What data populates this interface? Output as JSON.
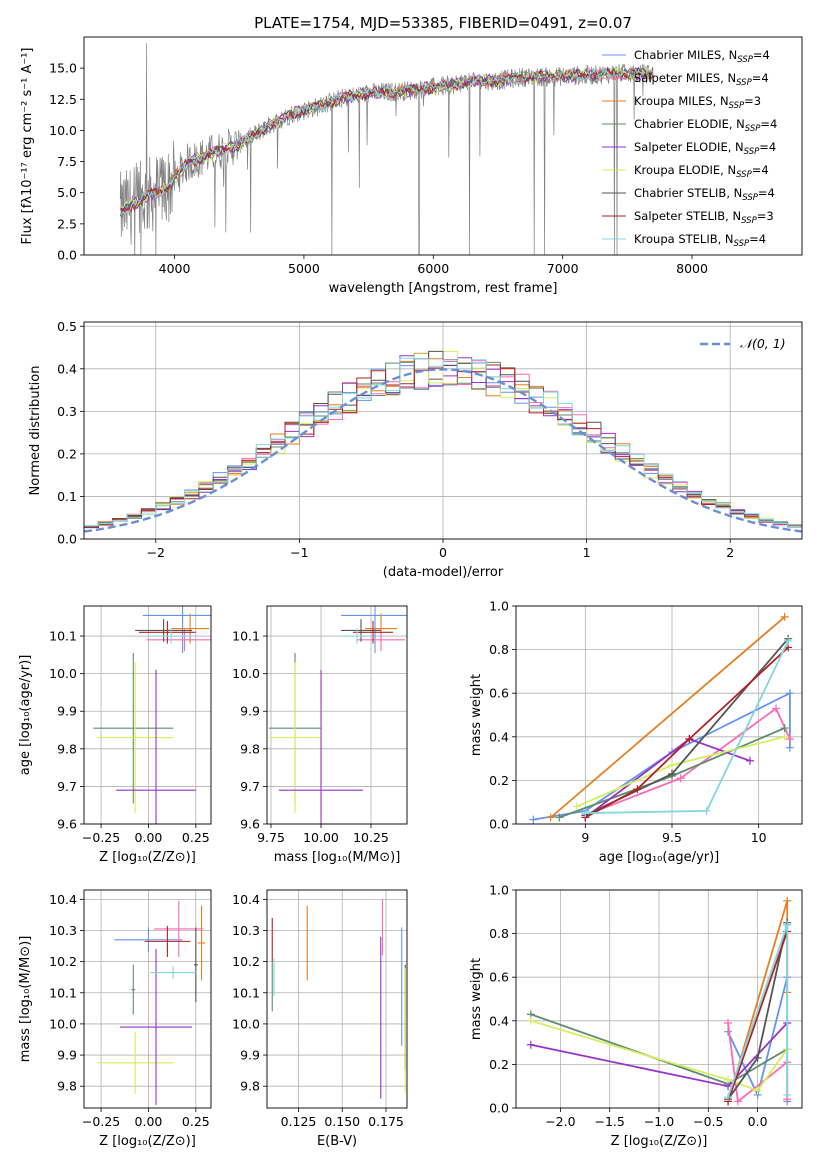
{
  "chart_data": [
    {
      "id": "spectrum",
      "type": "line",
      "title": "PLATE=1754, MJD=53385, FIBERID=0491, z=0.07",
      "xlabel": "wavelength [Angstrom, rest frame]",
      "ylabel": "Flux [fλ10⁻¹⁷ erg cm⁻² s⁻¹ A⁻¹]",
      "xlim": [
        3300,
        8850
      ],
      "ylim": [
        0,
        17.5
      ],
      "xticks": [
        4000,
        5000,
        6000,
        7000,
        8000
      ],
      "yticks": [
        0.0,
        2.5,
        5.0,
        7.5,
        10.0,
        12.5,
        15.0
      ],
      "grid": false,
      "legend_position": "right",
      "continuum_nodes": {
        "x": [
          3580,
          3700,
          3850,
          3950,
          4100,
          4300,
          4500,
          4700,
          4900,
          5100,
          5300,
          5500,
          5700,
          5900,
          6100,
          6300,
          6500,
          6700,
          6900,
          7100,
          7300,
          7500,
          7700
        ],
        "y": [
          3.5,
          4.2,
          5.0,
          5.5,
          7.4,
          8.2,
          8.9,
          10.2,
          11.3,
          11.9,
          12.6,
          13.0,
          13.1,
          13.3,
          13.6,
          14.0,
          14.0,
          14.3,
          14.3,
          14.4,
          14.5,
          14.6,
          14.5
        ]
      },
      "legend": [
        {
          "label": "Chabrier MILES, N",
          "sub": "SSP",
          "value": "=4",
          "color": "#6495ED"
        },
        {
          "label": "Salpeter MILES, N",
          "sub": "SSP",
          "value": "=4",
          "color": "#FF69B4"
        },
        {
          "label": "Kroupa MILES, N",
          "sub": "SSP",
          "value": "=3",
          "color": "#E67E22"
        },
        {
          "label": "Chabrier ELODIE, N",
          "sub": "SSP",
          "value": "=4",
          "color": "#5F8C6E"
        },
        {
          "label": "Salpeter ELODIE, N",
          "sub": "SSP",
          "value": "=4",
          "color": "#9932CC"
        },
        {
          "label": "Kroupa ELODIE, N",
          "sub": "SSP",
          "value": "=4",
          "color": "#D4EE5E"
        },
        {
          "label": "Chabrier STELIB, N",
          "sub": "SSP",
          "value": "=4",
          "color": "#555555"
        },
        {
          "label": "Salpeter STELIB, N",
          "sub": "SSP",
          "value": "=3",
          "color": "#B22222"
        },
        {
          "label": "Kroupa STELIB, N",
          "sub": "SSP",
          "value": "=4",
          "color": "#7FD8DF"
        }
      ]
    },
    {
      "id": "residuals",
      "type": "line",
      "xlabel": "(data-model)/error",
      "ylabel": "Normed distribution",
      "xlim": [
        -2.5,
        2.5
      ],
      "ylim": [
        0,
        0.51
      ],
      "xticks": [
        -2,
        -1,
        0,
        1,
        2
      ],
      "xtick_labels": [
        "−2",
        "−1",
        "0",
        "1",
        "2"
      ],
      "yticks": [
        0.0,
        0.1,
        0.2,
        0.3,
        0.4,
        0.5
      ],
      "grid": true,
      "legend_position": "top-right",
      "legend_label": "𝒩(0, 1)",
      "bin_width": 0.1
    },
    {
      "id": "age_vs_z",
      "type": "scatter",
      "xlabel": "Z [log₁₀(Z/Z⊙)]",
      "ylabel": "age  [log₁₀(age/yr)]",
      "xlim": [
        -0.34,
        0.33
      ],
      "ylim": [
        9.6,
        10.18
      ],
      "xticks": [
        -0.25,
        0.0,
        0.25
      ],
      "xtick_labels": [
        "−0.25",
        "0.00",
        "0.25"
      ],
      "yticks": [
        9.6,
        9.7,
        9.8,
        9.9,
        10.0,
        10.1
      ],
      "grid": true,
      "points": [
        {
          "x": 0.18,
          "y": 10.155,
          "xerr": 0.21,
          "yerr": 0.1,
          "color": "#6495ED"
        },
        {
          "x": 0.22,
          "y": 10.12,
          "xerr": 0.1,
          "yerr": 0.04,
          "color": "#E67E22"
        },
        {
          "x": 0.19,
          "y": 10.09,
          "xerr": 0.2,
          "yerr": 0.03,
          "color": "#FF69B4"
        },
        {
          "x": 0.08,
          "y": 10.115,
          "xerr": 0.15,
          "yerr": 0.03,
          "color": "#555555"
        },
        {
          "x": 0.1,
          "y": 10.11,
          "xerr": 0.15,
          "yerr": 0.03,
          "color": "#B22222"
        },
        {
          "x": -0.08,
          "y": 9.855,
          "xerr": 0.21,
          "yerr": 0.2,
          "color": "#5F8C6E"
        },
        {
          "x": -0.07,
          "y": 9.83,
          "xerr": 0.2,
          "yerr": 0.2,
          "color": "#D4EE5E"
        },
        {
          "x": 0.04,
          "y": 9.69,
          "xerr": 0.21,
          "yerr": 0.32,
          "color": "#9932CC"
        },
        {
          "x": 0.12,
          "y": 10.1,
          "xerr": 0.12,
          "yerr": 0.02,
          "color": "#7FD8DF"
        }
      ]
    },
    {
      "id": "age_vs_mass",
      "type": "scatter",
      "xlabel": "mass [log₁₀(M/M⊙)]",
      "xlim": [
        9.73,
        10.43
      ],
      "ylim": [
        9.6,
        10.18
      ],
      "xticks": [
        9.75,
        10.0,
        10.25
      ],
      "xtick_labels": [
        "9.75",
        "10.00",
        "10.25"
      ],
      "yticks": [
        9.6,
        9.7,
        9.8,
        9.9,
        10.0,
        10.1
      ],
      "grid": true,
      "points": [
        {
          "x": 10.27,
          "y": 10.155,
          "xerr": 0.17,
          "yerr": 0.1,
          "color": "#6495ED"
        },
        {
          "x": 10.3,
          "y": 10.12,
          "xerr": 0.08,
          "yerr": 0.04,
          "color": "#E67E22"
        },
        {
          "x": 10.3,
          "y": 10.09,
          "xerr": 0.12,
          "yerr": 0.03,
          "color": "#FF69B4"
        },
        {
          "x": 10.2,
          "y": 10.115,
          "xerr": 0.1,
          "yerr": 0.03,
          "color": "#555555"
        },
        {
          "x": 10.26,
          "y": 10.11,
          "xerr": 0.1,
          "yerr": 0.03,
          "color": "#B22222"
        },
        {
          "x": 9.87,
          "y": 9.855,
          "xerr": 0.13,
          "yerr": 0.2,
          "color": "#5F8C6E"
        },
        {
          "x": 9.87,
          "y": 9.83,
          "xerr": 0.13,
          "yerr": 0.2,
          "color": "#D4EE5E"
        },
        {
          "x": 10.0,
          "y": 9.69,
          "xerr": 0.21,
          "yerr": 0.32,
          "color": "#9932CC"
        },
        {
          "x": 10.18,
          "y": 10.1,
          "xerr": 0.08,
          "yerr": 0.02,
          "color": "#7FD8DF"
        }
      ]
    },
    {
      "id": "weight_vs_age",
      "type": "line",
      "xlabel": "age  [log₁₀(age/yr)]",
      "ylabel": "mass weight",
      "xlim": [
        8.6,
        10.25
      ],
      "ylim": [
        0,
        1.0
      ],
      "xticks": [
        9.0,
        9.5,
        10.0
      ],
      "yticks": [
        0.0,
        0.2,
        0.4,
        0.6,
        0.8,
        1.0
      ],
      "grid": true,
      "series": [
        {
          "color": "#6495ED",
          "x": [
            8.7,
            9.0,
            9.5,
            10.18,
            10.18
          ],
          "y": [
            0.02,
            0.06,
            0.33,
            0.6,
            0.35
          ]
        },
        {
          "color": "#E67E22",
          "x": [
            8.8,
            10.15
          ],
          "y": [
            0.03,
            0.95
          ]
        },
        {
          "color": "#FF69B4",
          "x": [
            9.0,
            9.55,
            10.1,
            10.18
          ],
          "y": [
            0.04,
            0.21,
            0.53,
            0.39
          ]
        },
        {
          "color": "#5F8C6E",
          "x": [
            8.85,
            9.5,
            10.15
          ],
          "y": [
            0.03,
            0.22,
            0.44
          ]
        },
        {
          "color": "#9932CC",
          "x": [
            9.0,
            9.6,
            9.95
          ],
          "y": [
            0.03,
            0.39,
            0.29
          ]
        },
        {
          "color": "#D4EE5E",
          "x": [
            8.95,
            9.5,
            10.15
          ],
          "y": [
            0.08,
            0.27,
            0.4
          ]
        },
        {
          "color": "#555555",
          "x": [
            9.0,
            9.5,
            10.17
          ],
          "y": [
            0.04,
            0.23,
            0.85
          ]
        },
        {
          "color": "#B22222",
          "x": [
            9.0,
            9.3,
            9.6,
            10.17
          ],
          "y": [
            0.03,
            0.16,
            0.39,
            0.81
          ]
        },
        {
          "color": "#7FD8DF",
          "x": [
            9.0,
            9.7,
            10.17
          ],
          "y": [
            0.05,
            0.06,
            0.84
          ]
        }
      ]
    },
    {
      "id": "mass_vs_z",
      "type": "scatter",
      "xlabel": "Z [log₁₀(Z/Z⊙)]",
      "ylabel": "mass [log₁₀(M/M⊙)]",
      "xlim": [
        -0.34,
        0.33
      ],
      "ylim": [
        9.73,
        10.43
      ],
      "xticks": [
        -0.25,
        0.0,
        0.25
      ],
      "xtick_labels": [
        "−0.25",
        "0.00",
        "0.25"
      ],
      "yticks": [
        9.8,
        9.9,
        10.0,
        10.1,
        10.2,
        10.3,
        10.4
      ],
      "grid": true,
      "points": [
        {
          "x": 0.0,
          "y": 10.27,
          "xerr": 0.18,
          "yerr": 0.04,
          "color": "#6495ED"
        },
        {
          "x": 0.28,
          "y": 10.26,
          "xerr": 0.02,
          "yerr": 0.12,
          "color": "#E67E22"
        },
        {
          "x": 0.16,
          "y": 10.305,
          "xerr": 0.13,
          "yerr": 0.09,
          "color": "#FF69B4"
        },
        {
          "x": 0.25,
          "y": 10.19,
          "xerr": 0.01,
          "yerr": 0.12,
          "color": "#555555"
        },
        {
          "x": 0.1,
          "y": 10.265,
          "xerr": 0.12,
          "yerr": 0.05,
          "color": "#B22222"
        },
        {
          "x": -0.08,
          "y": 10.11,
          "xerr": 0.01,
          "yerr": 0.08,
          "color": "#5F8C6E"
        },
        {
          "x": -0.07,
          "y": 9.875,
          "xerr": 0.2,
          "yerr": 0.1,
          "color": "#D4EE5E"
        },
        {
          "x": 0.04,
          "y": 9.99,
          "xerr": 0.19,
          "yerr": 0.25,
          "color": "#9932CC"
        },
        {
          "x": 0.13,
          "y": 10.165,
          "xerr": 0.12,
          "yerr": 0.02,
          "color": "#7FD8DF"
        }
      ]
    },
    {
      "id": "mass_vs_ebv",
      "type": "scatter",
      "xlabel": "E(B-V)",
      "xlim": [
        0.107,
        0.187
      ],
      "ylim": [
        9.73,
        10.43
      ],
      "xticks": [
        0.125,
        0.15,
        0.175
      ],
      "xtick_labels": [
        "0.125",
        "0.150",
        "0.175"
      ],
      "yticks": [
        9.8,
        9.9,
        10.0,
        10.1,
        10.2,
        10.3,
        10.4
      ],
      "grid": true,
      "points": [
        {
          "x": 0.184,
          "y": 10.12,
          "yerr": 0.19,
          "color": "#6495ED"
        },
        {
          "x": 0.13,
          "y": 10.26,
          "yerr": 0.12,
          "color": "#E67E22"
        },
        {
          "x": 0.173,
          "y": 10.31,
          "yerr": 0.09,
          "color": "#FF69B4"
        },
        {
          "x": 0.186,
          "y": 10.02,
          "yerr": 0.17,
          "color": "#555555"
        },
        {
          "x": 0.11,
          "y": 10.27,
          "yerr": 0.07,
          "color": "#B22222"
        },
        {
          "x": 0.11,
          "y": 10.12,
          "yerr": 0.08,
          "color": "#5F8C6E"
        },
        {
          "x": 0.186,
          "y": 9.98,
          "yerr": 0.2,
          "color": "#D4EE5E"
        },
        {
          "x": 0.172,
          "y": 10.02,
          "yerr": 0.26,
          "color": "#9932CC"
        },
        {
          "x": 0.111,
          "y": 10.15,
          "yerr": 0.06,
          "color": "#7FD8DF"
        }
      ]
    },
    {
      "id": "weight_vs_z",
      "type": "line",
      "xlabel": "Z [log₁₀(Z/Z⊙)]",
      "ylabel": "mass weight",
      "xlim": [
        -2.45,
        0.45
      ],
      "ylim": [
        0,
        1.0
      ],
      "xticks": [
        -2.0,
        -1.5,
        -1.0,
        -0.5,
        0.0
      ],
      "xtick_labels": [
        "−2.0",
        "−1.5",
        "−1.0",
        "−0.5",
        "0.0"
      ],
      "yticks": [
        0.0,
        0.2,
        0.4,
        0.6,
        0.8,
        1.0
      ],
      "grid": true,
      "series": [
        {
          "color": "#6495ED",
          "x": [
            -0.3,
            0.0,
            0.3,
            0.3,
            0.3
          ],
          "y": [
            0.35,
            0.06,
            0.6,
            0.84,
            0.03
          ]
        },
        {
          "color": "#E67E22",
          "x": [
            -0.3,
            0.3,
            0.3
          ],
          "y": [
            0.03,
            0.95,
            0.53
          ]
        },
        {
          "color": "#FF69B4",
          "x": [
            -0.3,
            -0.2,
            0.3,
            0.3
          ],
          "y": [
            0.39,
            0.03,
            0.21,
            0.04
          ]
        },
        {
          "color": "#5F8C6E",
          "x": [
            -2.3,
            -0.3,
            0.3
          ],
          "y": [
            0.43,
            0.11,
            0.27
          ]
        },
        {
          "color": "#9932CC",
          "x": [
            -2.3,
            -0.3,
            0.3
          ],
          "y": [
            0.29,
            0.1,
            0.39
          ]
        },
        {
          "color": "#D4EE5E",
          "x": [
            -2.3,
            -0.3,
            0.0,
            0.3
          ],
          "y": [
            0.4,
            0.13,
            0.08,
            0.27
          ]
        },
        {
          "color": "#555555",
          "x": [
            -0.3,
            0.0,
            0.3
          ],
          "y": [
            0.04,
            0.23,
            0.85
          ]
        },
        {
          "color": "#B22222",
          "x": [
            -0.3,
            0.3
          ],
          "y": [
            0.03,
            0.81
          ]
        },
        {
          "color": "#7FD8DF",
          "x": [
            -0.3,
            0.3,
            0.3
          ],
          "y": [
            0.05,
            0.84,
            0.06
          ]
        }
      ]
    }
  ]
}
